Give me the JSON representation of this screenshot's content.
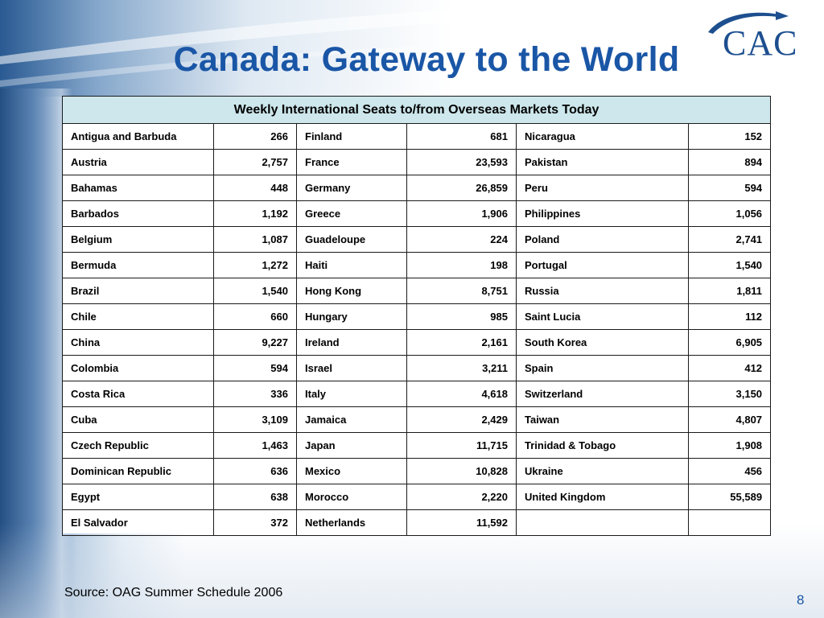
{
  "slide": {
    "title": "Canada: Gateway to the World",
    "logo_text": "CAC",
    "source": "Source: OAG Summer Schedule 2006",
    "page_number": "8",
    "colors": {
      "title": "#1a56a6",
      "table_header_bg": "#cde7ec",
      "logo": "#1d4f8f"
    }
  },
  "table": {
    "header": "Weekly International Seats to/from Overseas Markets Today",
    "rows": [
      [
        {
          "name": "Antigua and Barbuda",
          "seats": "266"
        },
        {
          "name": "Finland",
          "seats": "681"
        },
        {
          "name": "Nicaragua",
          "seats": "152"
        }
      ],
      [
        {
          "name": "Austria",
          "seats": "2,757"
        },
        {
          "name": "France",
          "seats": "23,593"
        },
        {
          "name": "Pakistan",
          "seats": "894"
        }
      ],
      [
        {
          "name": "Bahamas",
          "seats": "448"
        },
        {
          "name": "Germany",
          "seats": "26,859"
        },
        {
          "name": "Peru",
          "seats": "594"
        }
      ],
      [
        {
          "name": "Barbados",
          "seats": "1,192"
        },
        {
          "name": "Greece",
          "seats": "1,906"
        },
        {
          "name": "Philippines",
          "seats": "1,056"
        }
      ],
      [
        {
          "name": "Belgium",
          "seats": "1,087"
        },
        {
          "name": "Guadeloupe",
          "seats": "224"
        },
        {
          "name": "Poland",
          "seats": "2,741"
        }
      ],
      [
        {
          "name": "Bermuda",
          "seats": "1,272"
        },
        {
          "name": "Haiti",
          "seats": "198"
        },
        {
          "name": "Portugal",
          "seats": "1,540"
        }
      ],
      [
        {
          "name": "Brazil",
          "seats": "1,540"
        },
        {
          "name": "Hong Kong",
          "seats": "8,751"
        },
        {
          "name": "Russia",
          "seats": "1,811"
        }
      ],
      [
        {
          "name": "Chile",
          "seats": "660"
        },
        {
          "name": "Hungary",
          "seats": "985"
        },
        {
          "name": "Saint Lucia",
          "seats": "112"
        }
      ],
      [
        {
          "name": "China",
          "seats": "9,227"
        },
        {
          "name": "Ireland",
          "seats": "2,161"
        },
        {
          "name": "South Korea",
          "seats": "6,905"
        }
      ],
      [
        {
          "name": "Colombia",
          "seats": "594"
        },
        {
          "name": "Israel",
          "seats": "3,211"
        },
        {
          "name": "Spain",
          "seats": "412"
        }
      ],
      [
        {
          "name": "Costa Rica",
          "seats": "336"
        },
        {
          "name": "Italy",
          "seats": "4,618"
        },
        {
          "name": "Switzerland",
          "seats": "3,150"
        }
      ],
      [
        {
          "name": "Cuba",
          "seats": "3,109"
        },
        {
          "name": "Jamaica",
          "seats": "2,429"
        },
        {
          "name": "Taiwan",
          "seats": "4,807"
        }
      ],
      [
        {
          "name": "Czech Republic",
          "seats": "1,463"
        },
        {
          "name": "Japan",
          "seats": "11,715"
        },
        {
          "name": "Trinidad & Tobago",
          "seats": "1,908"
        }
      ],
      [
        {
          "name": "Dominican Republic",
          "seats": "636"
        },
        {
          "name": "Mexico",
          "seats": "10,828"
        },
        {
          "name": "Ukraine",
          "seats": "456"
        }
      ],
      [
        {
          "name": "Egypt",
          "seats": "638"
        },
        {
          "name": "Morocco",
          "seats": "2,220"
        },
        {
          "name": "United Kingdom",
          "seats": "55,589"
        }
      ],
      [
        {
          "name": "El Salvador",
          "seats": "372"
        },
        {
          "name": "Netherlands",
          "seats": "11,592"
        },
        {
          "name": "",
          "seats": ""
        }
      ]
    ]
  }
}
